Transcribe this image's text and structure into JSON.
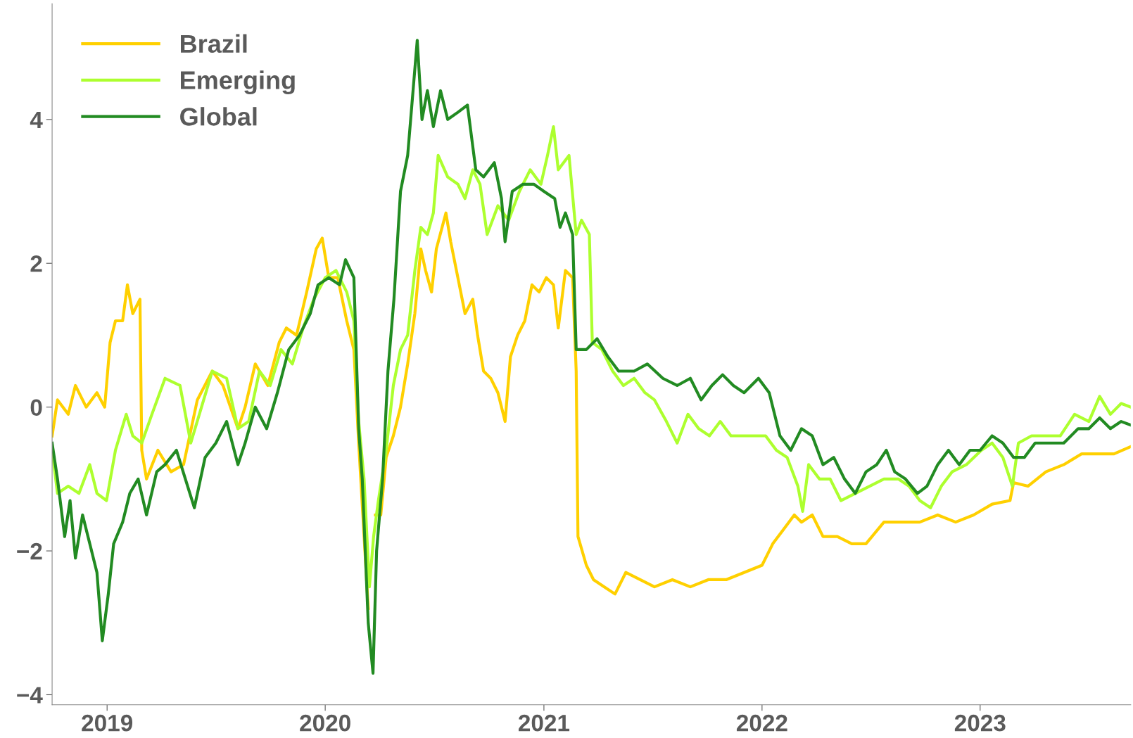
{
  "chart_data": {
    "type": "line",
    "legend": "top left",
    "grid": false,
    "line_style": "solid",
    "marker": "none",
    "xlim": [
      "2018-10-01",
      "2023-09-10"
    ],
    "xticks": [
      {
        "value": "2019-01-01",
        "label": "2019"
      },
      {
        "value": "2020-01-01",
        "label": "2020"
      },
      {
        "value": "2021-01-01",
        "label": "2021"
      },
      {
        "value": "2022-01-01",
        "label": "2022"
      },
      {
        "value": "2023-01-01",
        "label": "2023"
      }
    ],
    "ylim": [
      -4.14,
      5.61
    ],
    "yticks": [
      {
        "value": -4,
        "label": "−4"
      },
      {
        "value": -2,
        "label": "−2"
      },
      0,
      2,
      4
    ],
    "series": [
      {
        "name": "Brazil",
        "color": "#ffd000",
        "x": [
          "2018-10-01",
          "2018-10-10",
          "2018-10-28",
          "2018-11-09",
          "2018-11-27",
          "2018-12-15",
          "2018-12-28",
          "2019-01-06",
          "2019-01-15",
          "2019-01-27",
          "2019-02-04",
          "2019-02-13",
          "2019-02-25",
          "2019-02-28",
          "2019-03-08",
          "2019-03-27",
          "2019-04-18",
          "2019-05-09",
          "2019-06-01",
          "2019-06-26",
          "2019-07-14",
          "2019-08-08",
          "2019-08-20",
          "2019-09-06",
          "2019-09-27",
          "2019-10-16",
          "2019-10-28",
          "2019-11-14",
          "2019-12-01",
          "2019-12-17",
          "2019-12-27",
          "2020-01-07",
          "2020-01-22",
          "2020-02-06",
          "2020-02-18",
          "2020-02-26",
          "2020-03-04",
          "2020-03-13",
          "2020-03-19",
          "2020-03-25",
          "2020-04-03",
          "2020-04-12",
          "2020-04-24",
          "2020-05-06",
          "2020-05-18",
          "2020-05-30",
          "2020-06-09",
          "2020-06-17",
          "2020-06-27",
          "2020-07-05",
          "2020-07-21",
          "2020-07-29",
          "2020-08-10",
          "2020-08-22",
          "2020-09-04",
          "2020-09-12",
          "2020-09-22",
          "2020-10-04",
          "2020-10-16",
          "2020-10-28",
          "2020-11-06",
          "2020-11-18",
          "2020-11-30",
          "2020-12-12",
          "2020-12-24",
          "2021-01-05",
          "2021-01-17",
          "2021-01-25",
          "2021-02-06",
          "2021-02-18",
          "2021-02-24",
          "2021-02-27",
          "2021-03-13",
          "2021-03-25",
          "2021-04-12",
          "2021-04-30",
          "2021-05-18",
          "2021-06-11",
          "2021-07-05",
          "2021-08-04",
          "2021-09-03",
          "2021-10-03",
          "2021-11-02",
          "2021-12-02",
          "2022-01-01",
          "2022-01-19",
          "2022-02-06",
          "2022-02-24",
          "2022-03-08",
          "2022-03-26",
          "2022-04-13",
          "2022-05-07",
          "2022-05-31",
          "2022-06-24",
          "2022-07-24",
          "2022-08-23",
          "2022-09-22",
          "2022-10-22",
          "2022-11-21",
          "2022-12-21",
          "2023-01-21",
          "2023-02-20",
          "2023-02-26",
          "2023-03-22",
          "2023-04-21",
          "2023-05-21",
          "2023-06-20",
          "2023-07-20",
          "2023-08-13",
          "2023-09-10"
        ],
        "values": [
          -0.4,
          0.1,
          -0.1,
          0.3,
          0.0,
          0.2,
          0.0,
          0.9,
          1.2,
          1.2,
          1.7,
          1.3,
          1.5,
          -0.6,
          -1.0,
          -0.6,
          -0.9,
          -0.8,
          0.1,
          0.5,
          0.3,
          -0.3,
          0.0,
          0.6,
          0.3,
          0.9,
          1.1,
          1.0,
          1.6,
          2.2,
          2.35,
          1.8,
          1.8,
          1.2,
          0.8,
          -0.5,
          -1.5,
          -2.8,
          null,
          -1.5,
          -1.5,
          -0.7,
          -0.4,
          0.0,
          0.6,
          1.3,
          2.2,
          1.9,
          1.6,
          2.2,
          2.7,
          2.3,
          1.8,
          1.3,
          1.5,
          1.0,
          0.5,
          0.4,
          0.2,
          -0.2,
          0.7,
          1.0,
          1.2,
          1.7,
          1.6,
          1.8,
          1.7,
          1.1,
          1.9,
          1.8,
          0.5,
          -1.8,
          -2.2,
          -2.4,
          -2.5,
          -2.6,
          -2.3,
          -2.4,
          -2.5,
          -2.4,
          -2.5,
          -2.4,
          -2.4,
          -2.3,
          -2.2,
          -1.9,
          -1.7,
          -1.5,
          -1.6,
          -1.5,
          -1.8,
          -1.8,
          -1.9,
          -1.9,
          -1.6,
          -1.6,
          -1.6,
          -1.5,
          -1.6,
          -1.5,
          -1.35,
          -1.3,
          -1.05,
          -1.1,
          -0.9,
          -0.8,
          -0.65,
          -0.65,
          -0.65,
          -0.55
        ]
      },
      {
        "name": "Emerging",
        "color": "#adff2f",
        "x": [
          "2018-10-01",
          "2018-10-10",
          "2018-10-28",
          "2018-11-15",
          "2018-12-03",
          "2018-12-15",
          "2018-12-31",
          "2019-01-15",
          "2019-02-02",
          "2019-02-13",
          "2019-02-28",
          "2019-03-17",
          "2019-04-08",
          "2019-05-03",
          "2019-05-21",
          "2019-06-08",
          "2019-06-26",
          "2019-07-20",
          "2019-08-08",
          "2019-08-26",
          "2019-09-13",
          "2019-10-01",
          "2019-10-19",
          "2019-11-07",
          "2019-11-25",
          "2019-12-13",
          "2020-01-01",
          "2020-01-19",
          "2020-02-06",
          "2020-02-18",
          "2020-02-26",
          "2020-03-06",
          "2020-03-15",
          "2020-03-22",
          "2020-03-30",
          "2020-04-12",
          "2020-04-24",
          "2020-05-06",
          "2020-05-18",
          "2020-05-30",
          "2020-06-09",
          "2020-06-20",
          "2020-06-30",
          "2020-07-08",
          "2020-07-24",
          "2020-08-10",
          "2020-08-22",
          "2020-09-04",
          "2020-09-16",
          "2020-09-28",
          "2020-10-16",
          "2020-11-03",
          "2020-11-21",
          "2020-12-09",
          "2020-12-27",
          "2021-01-07",
          "2021-01-17",
          "2021-01-25",
          "2021-02-12",
          "2021-02-24",
          "2021-03-05",
          "2021-03-18",
          "2021-03-23",
          "2021-04-08",
          "2021-04-26",
          "2021-05-14",
          "2021-06-01",
          "2021-06-19",
          "2021-07-05",
          "2021-07-25",
          "2021-08-12",
          "2021-08-30",
          "2021-09-17",
          "2021-10-05",
          "2021-10-23",
          "2021-11-10",
          "2021-11-28",
          "2021-12-16",
          "2022-01-07",
          "2022-01-25",
          "2022-02-12",
          "2022-03-02",
          "2022-03-10",
          "2022-03-20",
          "2022-04-07",
          "2022-04-25",
          "2022-05-13",
          "2022-06-06",
          "2022-06-30",
          "2022-07-24",
          "2022-08-17",
          "2022-09-04",
          "2022-09-22",
          "2022-10-10",
          "2022-10-28",
          "2022-11-15",
          "2022-12-09",
          "2023-01-03",
          "2023-01-21",
          "2023-02-08",
          "2023-02-24",
          "2023-03-06",
          "2023-03-28",
          "2023-04-21",
          "2023-05-15",
          "2023-06-08",
          "2023-07-02",
          "2023-07-20",
          "2023-08-07",
          "2023-08-25",
          "2023-09-10"
        ],
        "values": [
          -0.6,
          -1.2,
          -1.1,
          -1.2,
          -0.8,
          -1.2,
          -1.3,
          -0.6,
          -0.1,
          -0.4,
          -0.5,
          -0.1,
          0.4,
          0.3,
          -0.5,
          0.0,
          0.5,
          0.4,
          -0.3,
          -0.2,
          0.5,
          0.3,
          0.8,
          0.6,
          1.1,
          1.5,
          1.8,
          1.9,
          1.6,
          1.2,
          -0.2,
          -1.0,
          -2.5,
          -1.8,
          -1.3,
          -0.6,
          0.3,
          0.8,
          1.0,
          1.9,
          2.5,
          2.4,
          2.7,
          3.5,
          3.2,
          3.1,
          2.9,
          3.3,
          3.1,
          2.4,
          2.8,
          2.6,
          3.0,
          3.3,
          3.1,
          3.5,
          3.9,
          3.3,
          3.5,
          2.4,
          2.6,
          2.4,
          0.9,
          0.8,
          0.5,
          0.3,
          0.4,
          0.2,
          0.1,
          -0.2,
          -0.5,
          -0.1,
          -0.3,
          -0.4,
          -0.2,
          -0.4,
          -0.4,
          -0.4,
          -0.4,
          -0.6,
          -0.7,
          -1.1,
          -1.45,
          -0.8,
          -1.0,
          -1.0,
          -1.3,
          -1.2,
          -1.1,
          -1.0,
          -1.0,
          -1.1,
          -1.3,
          -1.4,
          -1.1,
          -0.9,
          -0.8,
          -0.6,
          -0.5,
          -0.7,
          -1.1,
          -0.5,
          -0.4,
          -0.4,
          -0.4,
          -0.1,
          -0.2,
          0.15,
          -0.1,
          0.05,
          0.0
        ]
      },
      {
        "name": "Global",
        "color": "#228b22",
        "x": [
          "2018-10-01",
          "2018-10-10",
          "2018-10-22",
          "2018-10-31",
          "2018-11-09",
          "2018-11-21",
          "2018-12-03",
          "2018-12-15",
          "2018-12-24",
          "2019-01-03",
          "2019-01-12",
          "2019-01-27",
          "2019-02-08",
          "2019-02-22",
          "2019-03-08",
          "2019-03-25",
          "2019-04-08",
          "2019-04-27",
          "2019-05-12",
          "2019-05-27",
          "2019-06-14",
          "2019-07-02",
          "2019-07-20",
          "2019-08-08",
          "2019-08-20",
          "2019-09-06",
          "2019-09-25",
          "2019-10-13",
          "2019-11-01",
          "2019-11-19",
          "2019-12-07",
          "2019-12-20",
          "2020-01-07",
          "2020-01-25",
          "2020-02-04",
          "2020-02-18",
          "2020-02-26",
          "2020-03-03",
          "2020-03-13",
          "2020-03-21",
          "2020-03-27",
          "2020-04-06",
          "2020-04-15",
          "2020-04-25",
          "2020-05-06",
          "2020-05-18",
          "2020-05-26",
          "2020-06-03",
          "2020-06-11",
          "2020-06-20",
          "2020-06-30",
          "2020-07-12",
          "2020-07-24",
          "2020-08-10",
          "2020-08-26",
          "2020-09-09",
          "2020-09-22",
          "2020-10-10",
          "2020-10-22",
          "2020-10-28",
          "2020-11-09",
          "2020-11-27",
          "2020-12-15",
          "2021-01-01",
          "2021-01-19",
          "2021-01-28",
          "2021-02-06",
          "2021-02-18",
          "2021-02-24",
          "2021-03-13",
          "2021-03-31",
          "2021-04-18",
          "2021-05-06",
          "2021-06-01",
          "2021-06-23",
          "2021-07-19",
          "2021-08-12",
          "2021-09-03",
          "2021-09-21",
          "2021-10-09",
          "2021-10-27",
          "2021-11-14",
          "2021-12-02",
          "2021-12-26",
          "2022-01-13",
          "2022-01-31",
          "2022-02-18",
          "2022-03-08",
          "2022-03-26",
          "2022-04-13",
          "2022-05-01",
          "2022-05-19",
          "2022-06-06",
          "2022-06-24",
          "2022-07-12",
          "2022-07-28",
          "2022-08-11",
          "2022-08-29",
          "2022-09-18",
          "2022-10-04",
          "2022-10-22",
          "2022-11-09",
          "2022-11-27",
          "2022-12-15",
          "2023-01-01",
          "2023-01-21",
          "2023-02-08",
          "2023-02-26",
          "2023-03-16",
          "2023-04-03",
          "2023-04-27",
          "2023-05-21",
          "2023-06-14",
          "2023-07-02",
          "2023-07-20",
          "2023-08-07",
          "2023-08-25",
          "2023-09-10"
        ],
        "values": [
          -0.5,
          -1.0,
          -1.8,
          -1.3,
          -2.1,
          -1.5,
          -1.9,
          -2.3,
          -3.25,
          -2.6,
          -1.9,
          -1.6,
          -1.2,
          -1.0,
          -1.5,
          -0.9,
          -0.8,
          -0.6,
          -1.0,
          -1.4,
          -0.7,
          -0.5,
          -0.2,
          -0.8,
          -0.5,
          0.0,
          -0.3,
          0.2,
          0.8,
          1.0,
          1.3,
          1.7,
          1.8,
          1.7,
          2.05,
          1.8,
          -0.3,
          -1.0,
          -3.0,
          -3.7,
          -2.0,
          -1.0,
          0.5,
          1.5,
          3.0,
          3.5,
          4.3,
          5.1,
          4.0,
          4.4,
          3.9,
          4.4,
          4.0,
          4.1,
          4.2,
          3.3,
          3.2,
          3.4,
          2.9,
          2.3,
          3.0,
          3.1,
          3.1,
          3.0,
          2.9,
          2.5,
          2.7,
          2.4,
          0.8,
          0.8,
          0.95,
          0.7,
          0.5,
          0.5,
          0.6,
          0.4,
          0.3,
          0.4,
          0.1,
          0.3,
          0.45,
          0.3,
          0.2,
          0.4,
          0.2,
          -0.4,
          -0.6,
          -0.3,
          -0.4,
          -0.8,
          -0.7,
          -1.0,
          -1.2,
          -0.9,
          -0.8,
          -0.6,
          -0.9,
          -1.0,
          -1.2,
          -1.1,
          -0.8,
          -0.6,
          -0.8,
          -0.6,
          -0.6,
          -0.4,
          -0.5,
          -0.7,
          -0.7,
          -0.5,
          -0.5,
          -0.5,
          -0.3,
          -0.3,
          -0.15,
          -0.3,
          -0.2,
          -0.25
        ]
      }
    ]
  }
}
